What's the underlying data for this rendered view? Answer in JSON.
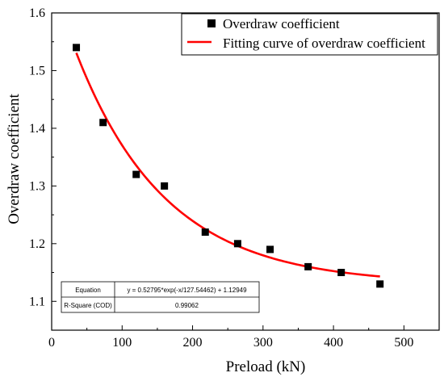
{
  "chart_data": {
    "type": "scatter",
    "xlabel": "Preload (kN)",
    "ylabel": "Overdraw coefficient",
    "xlim": [
      0,
      550
    ],
    "ylim": [
      1.05,
      1.6
    ],
    "x_ticks": [
      0,
      100,
      200,
      300,
      400,
      500
    ],
    "y_ticks": [
      1.1,
      1.2,
      1.3,
      1.4,
      1.5,
      1.6
    ],
    "x_tick_labels": [
      "0",
      "100",
      "200",
      "300",
      "400",
      "500"
    ],
    "y_tick_labels": [
      "1.1",
      "1.2",
      "1.3",
      "1.4",
      "1.5",
      "1.6"
    ],
    "legend_position": "top-right",
    "series": [
      {
        "name": "Overdraw coefficient",
        "kind": "points",
        "marker": "square",
        "color": "#000000",
        "x": [
          35,
          73,
          120,
          160,
          218,
          264,
          310,
          364,
          411,
          466
        ],
        "y": [
          1.54,
          1.41,
          1.32,
          1.3,
          1.22,
          1.2,
          1.19,
          1.16,
          1.15,
          1.13
        ]
      },
      {
        "name": "Fitting curve of overdraw coefficient",
        "kind": "curve",
        "color": "#ff0000",
        "formula": "y = A*exp(-x/t) + y0",
        "params": {
          "A": 0.52795,
          "t": 127.54462,
          "y0": 1.12949
        },
        "x_range": [
          35,
          466
        ]
      }
    ],
    "stats_table": {
      "rows": [
        {
          "label": "Equation",
          "value": "y = 0.52795*exp(-x/127.54462) + 1.12949"
        },
        {
          "label": "R-Square (COD)",
          "value": "0.99062"
        }
      ]
    }
  }
}
